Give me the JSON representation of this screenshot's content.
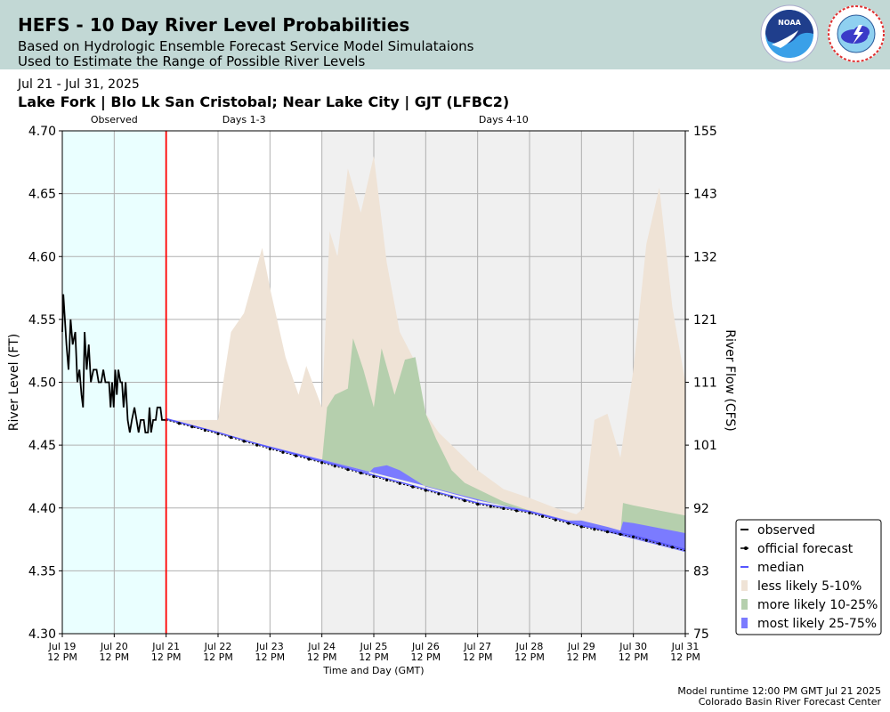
{
  "header": {
    "title": "HEFS - 10 Day River Level Probabilities",
    "subtitle_line1": "Based on Hydrologic Ensemble Forecast Service Model Simulataions",
    "subtitle_line2": "Used to Estimate the Range of Possible River Levels",
    "logos": [
      "noaa-logo",
      "nws-logo"
    ]
  },
  "date_range": "Jul 21 - Jul 31, 2025",
  "location": "Lake Fork | Blo Lk San Cristobal; Near Lake City | GJT (LFBC2)",
  "footer": {
    "runtime": "Model runtime 12:00 PM GMT Jul 21 2025",
    "center": "Colorado Basin River Forecast Center"
  },
  "chart_data": {
    "type": "area",
    "xlabel": "Time and Day (GMT)",
    "ylabel": "River Level (FT)",
    "y2label": "River Flow (CFS)",
    "ylim": [
      4.3,
      4.7
    ],
    "xlim": [
      0,
      12
    ],
    "yticks": [
      "4.30",
      "4.35",
      "4.40",
      "4.45",
      "4.50",
      "4.55",
      "4.60",
      "4.65",
      "4.70"
    ],
    "y2ticks": [
      {
        "level": 4.3,
        "label": "75"
      },
      {
        "level": 4.35,
        "label": "83"
      },
      {
        "level": 4.4,
        "label": "92"
      },
      {
        "level": 4.45,
        "label": "101"
      },
      {
        "level": 4.5,
        "label": "111"
      },
      {
        "level": 4.55,
        "label": "121"
      },
      {
        "level": 4.6,
        "label": "132"
      },
      {
        "level": 4.65,
        "label": "143"
      },
      {
        "level": 4.7,
        "label": "155"
      }
    ],
    "xticks": [
      {
        "day": 0,
        "date": "Jul 19",
        "time": "12 PM"
      },
      {
        "day": 1,
        "date": "Jul 20",
        "time": "12 PM"
      },
      {
        "day": 2,
        "date": "Jul 21",
        "time": "12 PM"
      },
      {
        "day": 3,
        "date": "Jul 22",
        "time": "12 PM"
      },
      {
        "day": 4,
        "date": "Jul 23",
        "time": "12 PM"
      },
      {
        "day": 5,
        "date": "Jul 24",
        "time": "12 PM"
      },
      {
        "day": 6,
        "date": "Jul 25",
        "time": "12 PM"
      },
      {
        "day": 7,
        "date": "Jul 26",
        "time": "12 PM"
      },
      {
        "day": 8,
        "date": "Jul 27",
        "time": "12 PM"
      },
      {
        "day": 9,
        "date": "Jul 28",
        "time": "12 PM"
      },
      {
        "day": 10,
        "date": "Jul 29",
        "time": "12 PM"
      },
      {
        "day": 11,
        "date": "Jul 30",
        "time": "12 PM"
      },
      {
        "day": 12,
        "date": "Jul 31",
        "time": "12 PM"
      }
    ],
    "regions": [
      {
        "label": "Observed",
        "start": 0,
        "end": 2,
        "color": "#eaffff"
      },
      {
        "label": "Days 1-3",
        "start": 2,
        "end": 5,
        "color": "#ffffff"
      },
      {
        "label": "Days 4-10",
        "start": 5,
        "end": 12,
        "color": "#f0f0f0"
      }
    ],
    "forecast_start": 2,
    "colors": {
      "observed": "#000000",
      "forecast": "#000000",
      "median": "#5555ff",
      "less_likely": "#efe3d6",
      "more_likely": "#b5cfad",
      "most_likely": "#7b7bff",
      "current_time_line": "#ff0000",
      "grid": "#b0b0b0"
    },
    "legend_position": "right",
    "legend": [
      {
        "key": "observed",
        "label": "observed"
      },
      {
        "key": "forecast",
        "label": "official forecast"
      },
      {
        "key": "median",
        "label": "median"
      },
      {
        "key": "less_likely",
        "label": "less likely 5-10%"
      },
      {
        "key": "more_likely",
        "label": "more likely 10-25%"
      },
      {
        "key": "most_likely",
        "label": "most likely 25-75%"
      }
    ],
    "series": {
      "observed": [
        [
          0.0,
          4.54
        ],
        [
          0.02,
          4.57
        ],
        [
          0.05,
          4.55
        ],
        [
          0.08,
          4.53
        ],
        [
          0.12,
          4.51
        ],
        [
          0.16,
          4.55
        ],
        [
          0.2,
          4.53
        ],
        [
          0.25,
          4.54
        ],
        [
          0.29,
          4.5
        ],
        [
          0.33,
          4.51
        ],
        [
          0.37,
          4.49
        ],
        [
          0.4,
          4.48
        ],
        [
          0.43,
          4.54
        ],
        [
          0.47,
          4.51
        ],
        [
          0.51,
          4.53
        ],
        [
          0.55,
          4.5
        ],
        [
          0.6,
          4.51
        ],
        [
          0.66,
          4.51
        ],
        [
          0.7,
          4.5
        ],
        [
          0.75,
          4.5
        ],
        [
          0.79,
          4.51
        ],
        [
          0.83,
          4.5
        ],
        [
          0.9,
          4.5
        ],
        [
          0.93,
          4.48
        ],
        [
          0.96,
          4.5
        ],
        [
          0.99,
          4.48
        ],
        [
          1.02,
          4.51
        ],
        [
          1.05,
          4.49
        ],
        [
          1.08,
          4.51
        ],
        [
          1.12,
          4.5
        ],
        [
          1.15,
          4.5
        ],
        [
          1.18,
          4.48
        ],
        [
          1.22,
          4.5
        ],
        [
          1.26,
          4.47
        ],
        [
          1.3,
          4.46
        ],
        [
          1.34,
          4.47
        ],
        [
          1.39,
          4.48
        ],
        [
          1.43,
          4.47
        ],
        [
          1.47,
          4.46
        ],
        [
          1.51,
          4.47
        ],
        [
          1.57,
          4.47
        ],
        [
          1.6,
          4.46
        ],
        [
          1.65,
          4.46
        ],
        [
          1.68,
          4.48
        ],
        [
          1.71,
          4.46
        ],
        [
          1.75,
          4.47
        ],
        [
          1.8,
          4.47
        ],
        [
          1.83,
          4.48
        ],
        [
          1.89,
          4.48
        ],
        [
          1.92,
          4.47
        ],
        [
          2.0,
          4.47
        ]
      ],
      "forecast_official": [
        [
          2,
          4.47
        ],
        [
          3,
          4.459
        ],
        [
          4,
          4.447
        ],
        [
          5,
          4.436
        ],
        [
          6,
          4.425
        ],
        [
          7,
          4.414
        ],
        [
          8,
          4.403
        ],
        [
          9,
          4.396
        ],
        [
          10,
          4.385
        ],
        [
          11,
          4.377
        ],
        [
          12,
          4.366
        ]
      ],
      "median": [
        [
          2,
          4.471
        ],
        [
          3,
          4.46
        ],
        [
          4,
          4.448
        ],
        [
          5,
          4.437
        ],
        [
          6,
          4.426
        ],
        [
          7,
          4.415
        ],
        [
          8,
          4.404
        ],
        [
          9,
          4.397
        ],
        [
          10,
          4.386
        ],
        [
          11,
          4.378
        ],
        [
          12,
          4.367
        ]
      ],
      "less_likely_upper": [
        [
          2,
          4.47
        ],
        [
          3.0,
          4.47
        ],
        [
          3.1,
          4.5
        ],
        [
          3.25,
          4.54
        ],
        [
          3.5,
          4.555
        ],
        [
          3.85,
          4.607
        ],
        [
          4.0,
          4.575
        ],
        [
          4.3,
          4.52
        ],
        [
          4.55,
          4.49
        ],
        [
          4.7,
          4.513
        ],
        [
          5.0,
          4.48
        ],
        [
          5.15,
          4.62
        ],
        [
          5.3,
          4.6
        ],
        [
          5.5,
          4.67
        ],
        [
          5.75,
          4.635
        ],
        [
          6.0,
          4.68
        ],
        [
          6.25,
          4.595
        ],
        [
          6.5,
          4.54
        ],
        [
          6.75,
          4.52
        ],
        [
          7.0,
          4.475
        ],
        [
          7.25,
          4.46
        ],
        [
          7.5,
          4.45
        ],
        [
          8.0,
          4.43
        ],
        [
          8.5,
          4.415
        ],
        [
          9.0,
          4.408
        ],
        [
          9.5,
          4.4
        ],
        [
          9.9,
          4.395
        ],
        [
          10.05,
          4.4
        ],
        [
          10.25,
          4.47
        ],
        [
          10.5,
          4.475
        ],
        [
          10.75,
          4.44
        ],
        [
          11.0,
          4.51
        ],
        [
          11.25,
          4.61
        ],
        [
          11.5,
          4.655
        ],
        [
          11.75,
          4.56
        ],
        [
          12.0,
          4.5
        ]
      ],
      "more_likely_upper": [
        [
          5.0,
          4.436
        ],
        [
          5.1,
          4.48
        ],
        [
          5.25,
          4.49
        ],
        [
          5.5,
          4.495
        ],
        [
          5.6,
          4.535
        ],
        [
          5.8,
          4.51
        ],
        [
          6.0,
          4.48
        ],
        [
          6.15,
          4.527
        ],
        [
          6.4,
          4.49
        ],
        [
          6.6,
          4.518
        ],
        [
          6.8,
          4.52
        ],
        [
          7.0,
          4.475
        ],
        [
          7.2,
          4.455
        ],
        [
          7.5,
          4.43
        ],
        [
          7.75,
          4.42
        ],
        [
          8.0,
          4.415
        ],
        [
          8.5,
          4.405
        ],
        [
          9.0,
          4.398
        ],
        [
          9.5,
          4.392
        ],
        [
          10.0,
          4.385
        ],
        [
          10.5,
          4.385
        ],
        [
          10.75,
          4.38
        ],
        [
          10.8,
          4.404
        ],
        [
          11.0,
          4.402
        ],
        [
          11.5,
          4.398
        ],
        [
          12.0,
          4.394
        ]
      ],
      "most_likely_upper": [
        [
          2,
          4.471
        ],
        [
          3,
          4.46
        ],
        [
          4,
          4.448
        ],
        [
          5,
          4.437
        ],
        [
          5.9,
          4.428
        ],
        [
          6.0,
          4.432
        ],
        [
          6.25,
          4.434
        ],
        [
          6.5,
          4.43
        ],
        [
          7.0,
          4.417
        ],
        [
          8.0,
          4.406
        ],
        [
          9.0,
          4.398
        ],
        [
          9.75,
          4.39
        ],
        [
          10.0,
          4.39
        ],
        [
          10.5,
          4.385
        ],
        [
          10.75,
          4.382
        ],
        [
          10.8,
          4.389
        ],
        [
          11.0,
          4.388
        ],
        [
          11.5,
          4.384
        ],
        [
          12.0,
          4.38
        ]
      ],
      "band_lower": [
        [
          2,
          4.47
        ],
        [
          12,
          4.365
        ]
      ]
    }
  }
}
